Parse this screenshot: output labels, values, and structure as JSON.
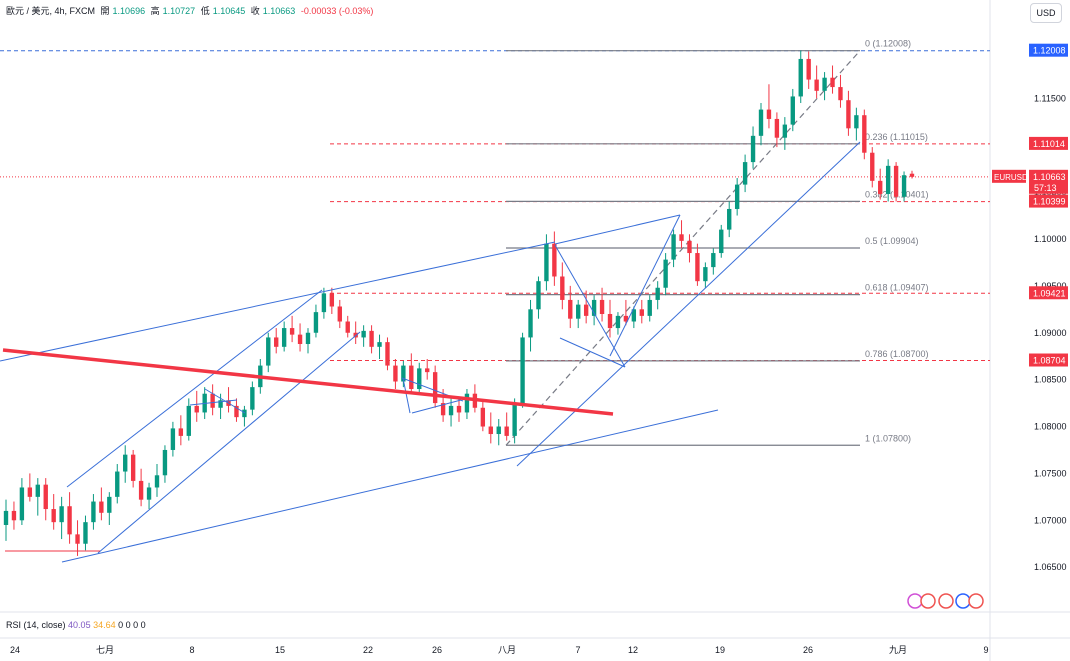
{
  "header": {
    "symbol_desc": "歐元 / 美元, 4h, FXCM",
    "open_label": "開",
    "open": "1.10696",
    "high_label": "高",
    "high": "1.10727",
    "low_label": "低",
    "low": "1.10645",
    "close_label": "收",
    "close": "1.10663",
    "change": "-0.00033 (-0.03%)",
    "currency": "USD"
  },
  "rsi": {
    "label": "RSI (14, close)",
    "v1": "40.05",
    "v2": "34.64",
    "extra": "0 0 0 0"
  },
  "colors": {
    "up": "#089981",
    "down": "#f23645",
    "trend": "#3a6fd8",
    "red_line": "#f23645",
    "fib": "#787b86",
    "blue_badge": "#2962ff"
  },
  "chart_data": {
    "type": "candlestick",
    "symbol": "EURUSD",
    "timeframe": "4h",
    "ylim": [
      1.0615,
      1.1225
    ],
    "y_ticks": [
      "1.06500",
      "1.07000",
      "1.07500",
      "1.08000",
      "1.08500",
      "1.09000",
      "1.09500",
      "1.10000",
      "1.10500",
      "1.11500"
    ],
    "x_ticks": [
      "24",
      "七月",
      "8",
      "15",
      "22",
      "26",
      "八月",
      "7",
      "12",
      "19",
      "26",
      "九月",
      "9"
    ],
    "price_labels": [
      {
        "text": "1.12008",
        "value": 1.12008,
        "style": "blue"
      },
      {
        "text": "1.11014",
        "value": 1.11014,
        "style": "red"
      },
      {
        "text": "EURUSD",
        "value": 1.10663,
        "style": "red"
      },
      {
        "text": "1.10663",
        "value": 1.10663,
        "style": "red"
      },
      {
        "text": "57:13",
        "value": 1.10663,
        "style": "red"
      },
      {
        "text": "1.10399",
        "value": 1.10399,
        "style": "red"
      },
      {
        "text": "1.09421",
        "value": 1.09421,
        "style": "red"
      },
      {
        "text": "1.08704",
        "value": 1.08704,
        "style": "red"
      }
    ],
    "fib_levels": [
      {
        "ratio": "0",
        "value": 1.12008,
        "label": "0 (1.12008)"
      },
      {
        "ratio": "0.236",
        "value": 1.11015,
        "label": "0.236 (1.11015)"
      },
      {
        "ratio": "0.382",
        "value": 1.10401,
        "label": "0.382 (1.10401)"
      },
      {
        "ratio": "0.5",
        "value": 1.09904,
        "label": "0.5 (1.09904)"
      },
      {
        "ratio": "0.618",
        "value": 1.09407,
        "label": "0.618 (1.09407)"
      },
      {
        "ratio": "0.786",
        "value": 1.087,
        "label": "0.786 (1.08700)"
      },
      {
        "ratio": "1",
        "value": 1.078,
        "label": "1 (1.07800)"
      }
    ],
    "horizontal_lines": [
      {
        "value": 1.12008,
        "style": "blue-dashed"
      },
      {
        "value": 1.11014,
        "style": "red-dashed"
      },
      {
        "value": 1.10663,
        "style": "red-dotted"
      },
      {
        "value": 1.10399,
        "style": "red-dashed"
      },
      {
        "value": 1.09421,
        "style": "red-dashed"
      },
      {
        "value": 1.08704,
        "style": "red-dashed"
      }
    ],
    "candles": [
      [
        1.0695,
        1.0722,
        1.0678,
        1.071
      ],
      [
        1.071,
        1.072,
        1.069,
        1.07
      ],
      [
        1.07,
        1.0745,
        1.0695,
        1.0735
      ],
      [
        1.0735,
        1.075,
        1.072,
        1.0725
      ],
      [
        1.0725,
        1.0745,
        1.0705,
        1.0738
      ],
      [
        1.0738,
        1.0745,
        1.07,
        1.0712
      ],
      [
        1.0712,
        1.0728,
        1.069,
        1.0698
      ],
      [
        1.0698,
        1.0725,
        1.068,
        1.0715
      ],
      [
        1.0715,
        1.073,
        1.0675,
        1.0685
      ],
      [
        1.0685,
        1.07,
        1.0662,
        1.0675
      ],
      [
        1.0675,
        1.0705,
        1.0668,
        1.0698
      ],
      [
        1.0698,
        1.0728,
        1.069,
        1.072
      ],
      [
        1.072,
        1.0735,
        1.07,
        1.0708
      ],
      [
        1.0708,
        1.073,
        1.0695,
        1.0725
      ],
      [
        1.0725,
        1.076,
        1.0718,
        1.0752
      ],
      [
        1.0752,
        1.078,
        1.074,
        1.077
      ],
      [
        1.077,
        1.0775,
        1.0735,
        1.0742
      ],
      [
        1.0742,
        1.0755,
        1.0715,
        1.0722
      ],
      [
        1.0722,
        1.074,
        1.0712,
        1.0735
      ],
      [
        1.0735,
        1.076,
        1.0725,
        1.0748
      ],
      [
        1.0748,
        1.078,
        1.074,
        1.0775
      ],
      [
        1.0775,
        1.0805,
        1.0768,
        1.0798
      ],
      [
        1.0798,
        1.0812,
        1.078,
        1.079
      ],
      [
        1.079,
        1.083,
        1.0785,
        1.0822
      ],
      [
        1.0822,
        1.0838,
        1.0805,
        1.0815
      ],
      [
        1.0815,
        1.0842,
        1.0808,
        1.0835
      ],
      [
        1.0835,
        1.0845,
        1.0812,
        1.082
      ],
      [
        1.082,
        1.0835,
        1.0808,
        1.0828
      ],
      [
        1.0828,
        1.0842,
        1.0815,
        1.0822
      ],
      [
        1.0822,
        1.083,
        1.0805,
        1.081
      ],
      [
        1.081,
        1.0822,
        1.08,
        1.0818
      ],
      [
        1.0818,
        1.0848,
        1.0812,
        1.0842
      ],
      [
        1.0842,
        1.0872,
        1.0835,
        1.0865
      ],
      [
        1.0865,
        1.09,
        1.0858,
        1.0895
      ],
      [
        1.0895,
        1.0905,
        1.0878,
        1.0885
      ],
      [
        1.0885,
        1.0912,
        1.088,
        1.0905
      ],
      [
        1.0905,
        1.0918,
        1.089,
        1.0898
      ],
      [
        1.0898,
        1.091,
        1.088,
        1.0888
      ],
      [
        1.0888,
        1.0905,
        1.0878,
        1.09
      ],
      [
        1.09,
        1.093,
        1.0895,
        1.0922
      ],
      [
        1.0922,
        1.0948,
        1.0915,
        1.0942
      ],
      [
        1.0942,
        1.0948,
        1.092,
        1.0928
      ],
      [
        1.0928,
        1.0935,
        1.0905,
        1.0912
      ],
      [
        1.0912,
        1.0918,
        1.0895,
        1.09
      ],
      [
        1.09,
        1.0912,
        1.0888,
        1.0895
      ],
      [
        1.0895,
        1.0908,
        1.0885,
        1.0902
      ],
      [
        1.0902,
        1.0908,
        1.0878,
        1.0885
      ],
      [
        1.0885,
        1.0898,
        1.0872,
        1.089
      ],
      [
        1.089,
        1.0895,
        1.086,
        1.0865
      ],
      [
        1.0865,
        1.0872,
        1.084,
        1.0848
      ],
      [
        1.0848,
        1.087,
        1.0842,
        1.0865
      ],
      [
        1.0865,
        1.0878,
        1.0835,
        1.084
      ],
      [
        1.084,
        1.0868,
        1.0835,
        1.0862
      ],
      [
        1.0862,
        1.0872,
        1.085,
        1.0858
      ],
      [
        1.0858,
        1.0865,
        1.082,
        1.0825
      ],
      [
        1.0825,
        1.084,
        1.0805,
        1.0812
      ],
      [
        1.0812,
        1.083,
        1.08,
        1.0822
      ],
      [
        1.0822,
        1.0832,
        1.0805,
        1.0815
      ],
      [
        1.0815,
        1.084,
        1.0808,
        1.0835
      ],
      [
        1.0835,
        1.0845,
        1.0815,
        1.082
      ],
      [
        1.082,
        1.0828,
        1.0795,
        1.08
      ],
      [
        1.08,
        1.0815,
        1.0782,
        1.0792
      ],
      [
        1.0792,
        1.0808,
        1.078,
        1.08
      ],
      [
        1.08,
        1.0815,
        1.0785,
        1.079
      ],
      [
        1.079,
        1.083,
        1.0782,
        1.0825
      ],
      [
        1.0825,
        1.09,
        1.082,
        1.0895
      ],
      [
        1.0895,
        1.0935,
        1.088,
        1.0925
      ],
      [
        1.0925,
        1.096,
        1.0915,
        1.0955
      ],
      [
        1.0955,
        1.1005,
        1.0945,
        1.0995
      ],
      [
        1.0995,
        1.1008,
        1.095,
        1.096
      ],
      [
        1.096,
        1.0975,
        1.0925,
        1.0935
      ],
      [
        1.0935,
        1.095,
        1.0905,
        1.0915
      ],
      [
        1.0915,
        1.0935,
        1.0905,
        1.093
      ],
      [
        1.093,
        1.0945,
        1.091,
        1.0918
      ],
      [
        1.0918,
        1.094,
        1.0908,
        1.0935
      ],
      [
        1.0935,
        1.0948,
        1.0912,
        1.092
      ],
      [
        1.092,
        1.0935,
        1.0895,
        1.0905
      ],
      [
        1.0905,
        1.0922,
        1.0898,
        1.0918
      ],
      [
        1.0918,
        1.0935,
        1.0908,
        1.0912
      ],
      [
        1.0912,
        1.0928,
        1.0905,
        1.0925
      ],
      [
        1.0925,
        1.0935,
        1.091,
        1.0918
      ],
      [
        1.0918,
        1.094,
        1.0912,
        1.0935
      ],
      [
        1.0935,
        1.0955,
        1.0925,
        1.0948
      ],
      [
        1.0948,
        1.0985,
        1.094,
        1.0978
      ],
      [
        1.0978,
        1.101,
        1.097,
        1.1005
      ],
      [
        1.1005,
        1.102,
        1.099,
        1.0998
      ],
      [
        1.0998,
        1.1005,
        1.0975,
        1.0985
      ],
      [
        1.0985,
        1.0995,
        1.095,
        1.0955
      ],
      [
        1.0955,
        1.0975,
        1.0948,
        1.097
      ],
      [
        1.097,
        1.099,
        1.0962,
        1.0985
      ],
      [
        1.0985,
        1.1015,
        1.098,
        1.101
      ],
      [
        1.101,
        1.104,
        1.1002,
        1.1032
      ],
      [
        1.1032,
        1.1065,
        1.1025,
        1.1058
      ],
      [
        1.1058,
        1.109,
        1.105,
        1.1082
      ],
      [
        1.1082,
        1.112,
        1.1075,
        1.111
      ],
      [
        1.111,
        1.1145,
        1.11,
        1.1138
      ],
      [
        1.1138,
        1.1165,
        1.1118,
        1.1128
      ],
      [
        1.1128,
        1.1135,
        1.1098,
        1.1108
      ],
      [
        1.1108,
        1.113,
        1.1095,
        1.1122
      ],
      [
        1.1122,
        1.116,
        1.1115,
        1.1152
      ],
      [
        1.1152,
        1.1201,
        1.1145,
        1.1192
      ],
      [
        1.1192,
        1.12,
        1.116,
        1.117
      ],
      [
        1.117,
        1.1185,
        1.115,
        1.1158
      ],
      [
        1.1158,
        1.1178,
        1.1148,
        1.1172
      ],
      [
        1.1172,
        1.1185,
        1.1155,
        1.1162
      ],
      [
        1.1162,
        1.1175,
        1.114,
        1.1148
      ],
      [
        1.1148,
        1.1158,
        1.111,
        1.1118
      ],
      [
        1.1118,
        1.114,
        1.1105,
        1.1132
      ],
      [
        1.1132,
        1.1138,
        1.1085,
        1.1092
      ],
      [
        1.1092,
        1.1098,
        1.1055,
        1.1062
      ],
      [
        1.1062,
        1.1075,
        1.1042,
        1.1048
      ],
      [
        1.1048,
        1.1085,
        1.104,
        1.1078
      ],
      [
        1.1078,
        1.1082,
        1.104,
        1.1045
      ],
      [
        1.1045,
        1.1072,
        1.104,
        1.1068
      ],
      [
        1.10696,
        1.10727,
        1.10645,
        1.10663
      ]
    ]
  }
}
